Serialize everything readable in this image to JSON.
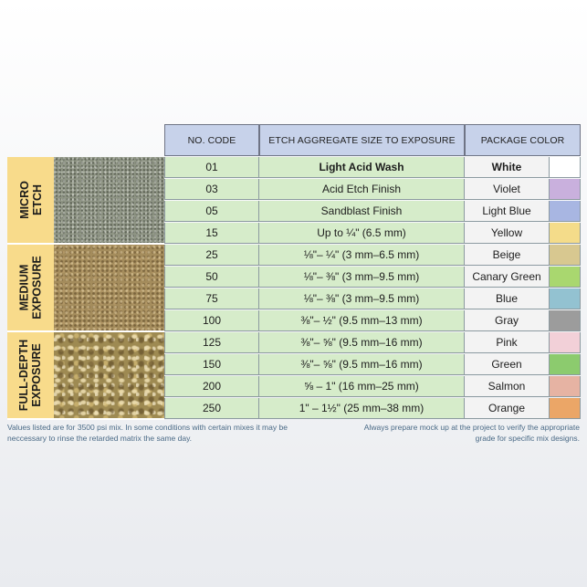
{
  "table": {
    "headers": {
      "code": "NO. CODE",
      "size": "ETCH AGGREGATE SIZE TO EXPOSURE",
      "color": "PACKAGE COLOR"
    },
    "groups": [
      {
        "label_line1": "MICRO",
        "label_line2": "ETCH",
        "rows": 4
      },
      {
        "label_line1": "MEDIUM",
        "label_line2": "EXPOSURE",
        "rows": 4
      },
      {
        "label_line1": "FULL-DEPTH",
        "label_line2": "EXPOSURE",
        "rows": 4
      }
    ],
    "rows": [
      {
        "code": "01",
        "size": "Light Acid Wash",
        "package": "White",
        "swatch": "#ffffff",
        "bold": true
      },
      {
        "code": "03",
        "size": "Acid Etch Finish",
        "package": "Violet",
        "swatch": "#c9b0dd",
        "bold": false
      },
      {
        "code": "05",
        "size": "Sandblast Finish",
        "package": "Light Blue",
        "swatch": "#a8b6e2",
        "bold": false
      },
      {
        "code": "15",
        "size": "Up to ¼\" (6.5 mm)",
        "package": "Yellow",
        "swatch": "#f4dc8a",
        "bold": false
      },
      {
        "code": "25",
        "size": "⅛\"– ¼\"  (3 mm–6.5 mm)",
        "package": "Beige",
        "swatch": "#d8c890",
        "bold": false
      },
      {
        "code": "50",
        "size": "⅛\"– ⅜\"  (3 mm–9.5 mm)",
        "package": "Canary Green",
        "swatch": "#a9d76f",
        "bold": false
      },
      {
        "code": "75",
        "size": "⅛\"– ⅜\"  (3 mm–9.5 mm)",
        "package": "Blue",
        "swatch": "#93c2d1",
        "bold": false
      },
      {
        "code": "100",
        "size": "⅜\"– ½\"   (9.5 mm–13 mm)",
        "package": "Gray",
        "swatch": "#9c9c9c",
        "bold": false
      },
      {
        "code": "125",
        "size": "⅜\"– ⅝\"   (9.5 mm–16 mm)",
        "package": "Pink",
        "swatch": "#f2d0d8",
        "bold": false
      },
      {
        "code": "150",
        "size": "⅜\"– ⅝\"   (9.5 mm–16 mm)",
        "package": "Green",
        "swatch": "#8ccb6e",
        "bold": false
      },
      {
        "code": "200",
        "size": "⅝ – 1\"  (16 mm–25 mm)",
        "package": "Salmon",
        "swatch": "#e6b3a3",
        "bold": false
      },
      {
        "code": "250",
        "size": "1\" – 1½\"  (25 mm–38 mm)",
        "package": "Orange",
        "swatch": "#eba667",
        "bold": false
      }
    ]
  },
  "notes": {
    "left": "Values listed are for 3500 psi mix. In some conditions with certain mixes it may be neccessary to rinse the retarded matrix the same day.",
    "right": "Always prepare mock up at the project to verify the appropriate grade for specific mix designs."
  }
}
